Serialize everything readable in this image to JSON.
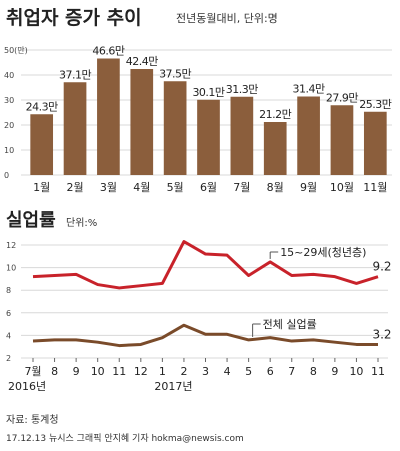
{
  "header": {
    "title": "취업자 증가 추이",
    "subtitle": "전년동월대비, 단위:명"
  },
  "section2": {
    "title": "실업률",
    "unit": "단위:%"
  },
  "footer": {
    "source": "자료: 통계청",
    "credit": "17.12.13 뉴시스 그래픽 안지혜 기자 hokma@newsis.com"
  },
  "colors": {
    "bar": "#8b5e3c",
    "youth_line": "#c8222a",
    "total_line": "#7a4b2a",
    "grid": "#d8d8d8"
  },
  "chart_data": [
    {
      "type": "bar",
      "categories": [
        "1월",
        "2월",
        "3월",
        "4월",
        "5월",
        "6월",
        "7월",
        "8월",
        "9월",
        "10월",
        "11월"
      ],
      "values": [
        24.3,
        37.1,
        46.6,
        42.4,
        37.5,
        30.1,
        31.3,
        21.2,
        31.4,
        27.9,
        25.3
      ],
      "value_labels": [
        "24.3만",
        "37.1만",
        "46.6만",
        "42.4만",
        "37.5만",
        "30.1만",
        "31.3만",
        "21.2만",
        "31.4만",
        "27.9만",
        "25.3만"
      ],
      "ylim": [
        0,
        50
      ],
      "yticks": [
        0,
        10,
        20,
        30,
        40,
        50
      ],
      "ytick_labels": [
        "0",
        "10",
        "20",
        "30",
        "40",
        "50(만)"
      ],
      "grid": true
    },
    {
      "type": "line",
      "x": [
        "7월",
        "8",
        "9",
        "10",
        "11",
        "12",
        "1",
        "2",
        "3",
        "4",
        "5",
        "6",
        "7",
        "8",
        "9",
        "10",
        "11"
      ],
      "year_labels": [
        "2016년",
        "2017년"
      ],
      "ylim": [
        2,
        12
      ],
      "yticks": [
        2,
        4,
        6,
        8,
        10,
        12
      ],
      "ytick_labels": [
        "2",
        "4",
        "6",
        "8",
        "10",
        "12"
      ],
      "grid": true,
      "series": [
        {
          "name": "15~29세(청년층)",
          "values": [
            9.2,
            9.3,
            9.4,
            8.5,
            8.2,
            8.4,
            8.6,
            12.3,
            11.2,
            11.1,
            9.3,
            10.5,
            9.3,
            9.4,
            9.2,
            8.6,
            9.2
          ],
          "end_label": "9.2"
        },
        {
          "name": "전체 실업률",
          "values": [
            3.5,
            3.6,
            3.6,
            3.4,
            3.1,
            3.2,
            3.8,
            4.9,
            4.1,
            4.1,
            3.6,
            3.8,
            3.5,
            3.6,
            3.4,
            3.2,
            3.2
          ],
          "end_label": "3.2"
        }
      ]
    }
  ]
}
